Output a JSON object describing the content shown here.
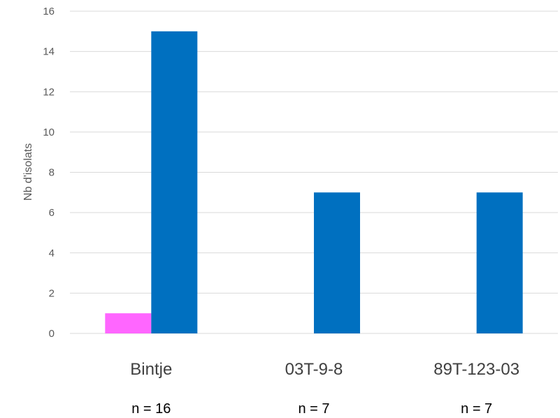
{
  "chart_data": {
    "type": "bar",
    "title": "",
    "xlabel": "",
    "ylabel": "Nb d'isolats",
    "ylim": [
      0,
      16
    ],
    "yticks": [
      0,
      2,
      4,
      6,
      8,
      10,
      12,
      14,
      16
    ],
    "grid": true,
    "legend": "none",
    "categories": [
      "Bintje",
      "03T-9-8",
      "89T-123-03"
    ],
    "category_counts": [
      "n = 16",
      "n = 7",
      "n = 7"
    ],
    "series": [
      {
        "color": "#FF66FF",
        "values": [
          1,
          0,
          0
        ]
      },
      {
        "color": "#0070C0",
        "values": [
          15,
          7,
          7
        ]
      }
    ]
  }
}
